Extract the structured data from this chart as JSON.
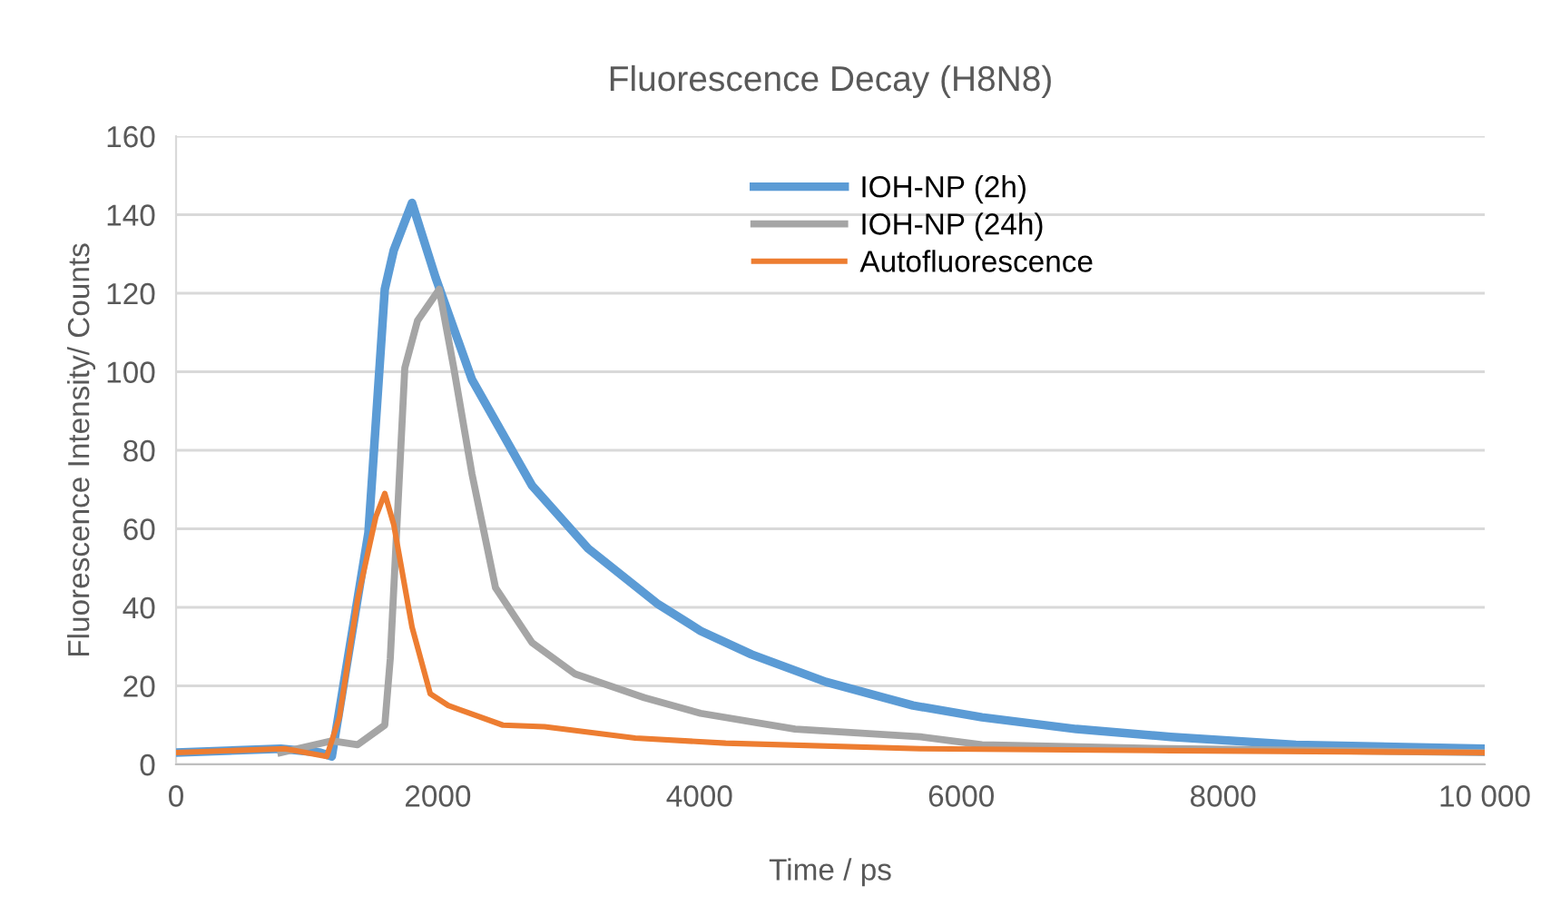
{
  "chart_data": {
    "type": "line",
    "title": "Fluorescence Decay (H8N8)",
    "xlabel": "Time / ps",
    "ylabel": "Fluorescence Intensity/ Counts",
    "xlim": [
      0,
      10000
    ],
    "ylim": [
      0,
      160
    ],
    "xticks": [
      0,
      2000,
      4000,
      6000,
      8000,
      {
        "value": 10000,
        "label": "10 000"
      }
    ],
    "yticks": [
      0,
      20,
      40,
      60,
      80,
      100,
      120,
      140,
      160
    ],
    "grid": "y",
    "legend": "top right",
    "marker": "none",
    "line_style": "solid",
    "series": [
      {
        "name": "IOH-NP (2h)",
        "color": "#5b9bd5",
        "x": [
          0,
          800,
          1100,
          1190,
          1470,
          1595,
          1664,
          1803,
          1983,
          2261,
          2720,
          3148,
          3675,
          4008,
          4397,
          4965,
          5631,
          6158,
          6879,
          7600,
          8557,
          10000
        ],
        "values": [
          3,
          4,
          3,
          2,
          59,
          121,
          131,
          143,
          124,
          98,
          71,
          55,
          41,
          34,
          28,
          21,
          15,
          12,
          9,
          7,
          5,
          4
        ]
      },
      {
        "name": "IOH-NP (24h)",
        "color": "#a5a5a5",
        "x": [
          800,
          1193,
          1387,
          1595,
          1637,
          1748,
          1845,
          2011,
          2122,
          2261,
          2441,
          2720,
          3051,
          3578,
          4008,
          4730,
          5690,
          6158,
          7600,
          10000
        ],
        "values": [
          3,
          6,
          5,
          10,
          27,
          101,
          113,
          121,
          101,
          74,
          45,
          31,
          23,
          17,
          13,
          9,
          7,
          5,
          4,
          3
        ]
      },
      {
        "name": "Autofluorescence",
        "color": "#ed7d31",
        "x": [
          0,
          832,
          1151,
          1248,
          1387,
          1526,
          1595,
          1664,
          1803,
          1942,
          2080,
          2497,
          2816,
          3509,
          4200,
          5690,
          7600,
          10000
        ],
        "values": [
          3,
          4,
          2,
          12,
          42,
          63,
          69,
          61,
          35,
          18,
          15,
          10,
          9.6,
          6.7,
          5.4,
          4,
          3.5,
          3
        ]
      }
    ]
  }
}
